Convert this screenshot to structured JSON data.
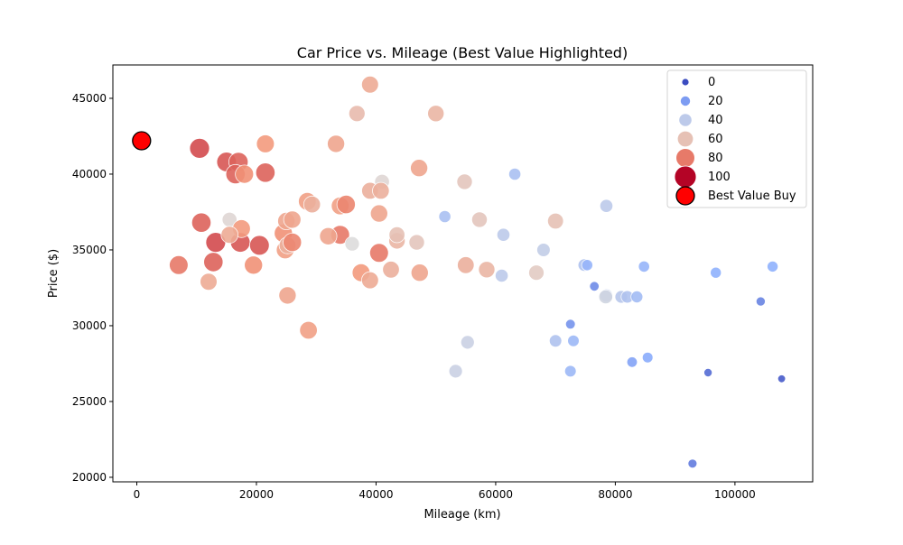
{
  "chart_data": {
    "type": "scatter",
    "title": "Car Price vs. Mileage (Best Value Highlighted)",
    "xlabel": "Mileage (km)",
    "ylabel": "Price ($)",
    "xlim": [
      -4000,
      113000
    ],
    "ylim": [
      19700,
      47200
    ],
    "xticks": [
      0,
      20000,
      40000,
      60000,
      80000,
      100000
    ],
    "yticks": [
      20000,
      25000,
      30000,
      35000,
      40000,
      45000
    ],
    "grid": false,
    "legend_position": "top-right",
    "hue_scale": {
      "min": 0,
      "max": 100,
      "colormap": "coolwarm"
    },
    "legend": {
      "entries": [
        {
          "label": "0",
          "hue": 0
        },
        {
          "label": "20",
          "hue": 20
        },
        {
          "label": "40",
          "hue": 40
        },
        {
          "label": "60",
          "hue": 60
        },
        {
          "label": "80",
          "hue": 80
        },
        {
          "label": "100",
          "hue": 100
        }
      ],
      "best_value_label": "Best Value Buy"
    },
    "best_value": {
      "x": 800,
      "y": 42200,
      "color": "#ff0000"
    },
    "points": [
      [
        10500,
        41700,
        88
      ],
      [
        15000,
        40800,
        86
      ],
      [
        17000,
        40800,
        84
      ],
      [
        16500,
        40000,
        84
      ],
      [
        18000,
        40000,
        76
      ],
      [
        21500,
        42000,
        74
      ],
      [
        21500,
        40100,
        84
      ],
      [
        10800,
        36800,
        84
      ],
      [
        13200,
        35500,
        88
      ],
      [
        12800,
        34200,
        84
      ],
      [
        17300,
        35500,
        86
      ],
      [
        20500,
        35300,
        86
      ],
      [
        7000,
        34000,
        80
      ],
      [
        19500,
        34000,
        76
      ],
      [
        15500,
        37000,
        52
      ],
      [
        17500,
        36400,
        74
      ],
      [
        15500,
        36000,
        68
      ],
      [
        12000,
        32900,
        68
      ],
      [
        24500,
        36100,
        76
      ],
      [
        25000,
        36900,
        70
      ],
      [
        26000,
        37000,
        70
      ],
      [
        24800,
        35000,
        72
      ],
      [
        25200,
        35300,
        66
      ],
      [
        26000,
        35500,
        78
      ],
      [
        25200,
        32000,
        70
      ],
      [
        28700,
        29700,
        72
      ],
      [
        28500,
        38200,
        72
      ],
      [
        29300,
        38000,
        66
      ],
      [
        33300,
        42000,
        70
      ],
      [
        34000,
        37900,
        72
      ],
      [
        35000,
        38000,
        78
      ],
      [
        34000,
        36000,
        80
      ],
      [
        32000,
        35900,
        70
      ],
      [
        36000,
        35400,
        50
      ],
      [
        36800,
        44000,
        62
      ],
      [
        39000,
        45900,
        68
      ],
      [
        41000,
        39500,
        52
      ],
      [
        39000,
        38900,
        66
      ],
      [
        40800,
        38900,
        66
      ],
      [
        40500,
        37400,
        70
      ],
      [
        43500,
        35600,
        64
      ],
      [
        43500,
        36000,
        60
      ],
      [
        40500,
        34800,
        80
      ],
      [
        37500,
        33500,
        74
      ],
      [
        39000,
        33000,
        68
      ],
      [
        42500,
        33700,
        66
      ],
      [
        46800,
        35500,
        58
      ],
      [
        47300,
        33500,
        70
      ],
      [
        47200,
        40400,
        70
      ],
      [
        50000,
        44000,
        64
      ],
      [
        54800,
        39500,
        58
      ],
      [
        55000,
        34000,
        66
      ],
      [
        57300,
        37000,
        58
      ],
      [
        58500,
        33700,
        64
      ],
      [
        51500,
        37200,
        34
      ],
      [
        63200,
        40000,
        34
      ],
      [
        61300,
        36000,
        40
      ],
      [
        61000,
        33300,
        40
      ],
      [
        55300,
        28900,
        44
      ],
      [
        53300,
        27000,
        44
      ],
      [
        66800,
        33500,
        56
      ],
      [
        70000,
        36900,
        60
      ],
      [
        68000,
        35000,
        42
      ],
      [
        70000,
        29000,
        36
      ],
      [
        72500,
        30100,
        18
      ],
      [
        73000,
        29000,
        30
      ],
      [
        72500,
        27000,
        30
      ],
      [
        74800,
        34000,
        36
      ],
      [
        75300,
        34000,
        28
      ],
      [
        76500,
        32600,
        16
      ],
      [
        78500,
        32000,
        40
      ],
      [
        78500,
        37900,
        40
      ],
      [
        78400,
        31900,
        46
      ],
      [
        81000,
        31900,
        38
      ],
      [
        82000,
        31900,
        36
      ],
      [
        83600,
        31900,
        32
      ],
      [
        84800,
        33900,
        28
      ],
      [
        85400,
        27900,
        24
      ],
      [
        82800,
        27600,
        22
      ],
      [
        92900,
        20900,
        12
      ],
      [
        95500,
        26900,
        8
      ],
      [
        96800,
        33500,
        26
      ],
      [
        104300,
        31600,
        14
      ],
      [
        106300,
        33900,
        26
      ],
      [
        107800,
        26500,
        4
      ]
    ]
  }
}
